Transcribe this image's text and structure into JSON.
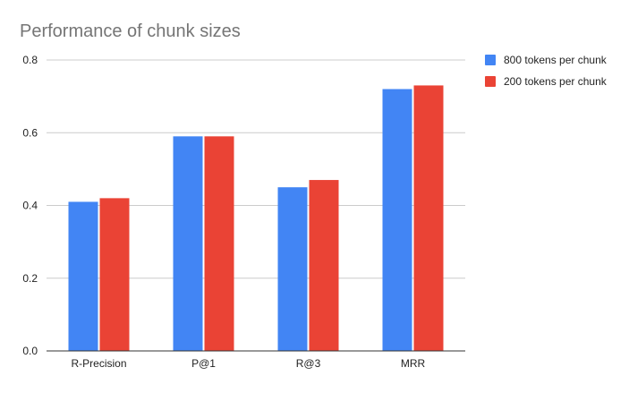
{
  "chart_data": {
    "type": "bar",
    "title": "Performance of chunk sizes",
    "xlabel": "",
    "ylabel": "",
    "categories": [
      "R-Precision",
      "P@1",
      "R@3",
      "MRR"
    ],
    "series": [
      {
        "name": "800 tokens per chunk",
        "color": "#4285f4",
        "values": [
          0.41,
          0.59,
          0.45,
          0.72
        ]
      },
      {
        "name": "200 tokens per chunk",
        "color": "#ea4335",
        "values": [
          0.42,
          0.59,
          0.47,
          0.73
        ]
      }
    ],
    "ylim": [
      0,
      0.8
    ],
    "yticks": [
      "0.0",
      "0.2",
      "0.4",
      "0.6",
      "0.8"
    ],
    "grid": true,
    "legend_position": "right"
  }
}
